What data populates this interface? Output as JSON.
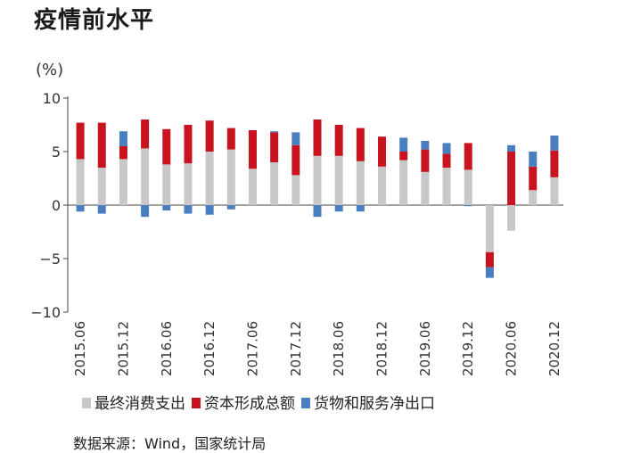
{
  "heading": "疫情前水平",
  "source": "数据来源：Wind，国家统计局",
  "chart_data": {
    "type": "bar",
    "stacked": true,
    "ylabel": "(%)",
    "ylim": [
      -10,
      10
    ],
    "yticks": [
      10,
      5,
      0,
      -5,
      -10
    ],
    "ytick_labels": [
      "10",
      "5",
      "0",
      "−5",
      "−10"
    ],
    "grid": false,
    "legend_position": "bottom",
    "categories": [
      "2015.06",
      "2015.09",
      "2015.12",
      "2016.03",
      "2016.06",
      "2016.09",
      "2016.12",
      "2017.03",
      "2017.06",
      "2017.09",
      "2017.12",
      "2018.03",
      "2018.06",
      "2018.09",
      "2018.12",
      "2019.03",
      "2019.06",
      "2019.09",
      "2019.12",
      "2020.03",
      "2020.06",
      "2020.09",
      "2020.12"
    ],
    "xtick_labels": [
      "2015.06",
      "",
      "2015.12",
      "",
      "2016.06",
      "",
      "2016.12",
      "",
      "2017.06",
      "",
      "2017.12",
      "",
      "2018.06",
      "",
      "2018.12",
      "",
      "2019.06",
      "",
      "2019.12",
      "",
      "2020.06",
      "",
      "2020.12"
    ],
    "series": [
      {
        "name": "最终消费支出",
        "color": "#c8c8c8",
        "values": [
          4.3,
          3.5,
          4.3,
          5.3,
          3.8,
          3.9,
          5.0,
          5.2,
          3.4,
          4.0,
          2.8,
          4.6,
          4.6,
          4.1,
          3.6,
          4.2,
          3.1,
          3.5,
          3.3,
          -4.4,
          -2.4,
          1.4,
          2.6
        ]
      },
      {
        "name": "资本形成总额",
        "color": "#c8141e",
        "values": [
          3.4,
          4.2,
          1.2,
          2.7,
          3.3,
          3.6,
          2.9,
          2.0,
          3.6,
          2.8,
          2.8,
          3.4,
          2.9,
          3.1,
          2.8,
          0.8,
          2.1,
          1.3,
          2.5,
          -1.4,
          5.0,
          2.2,
          2.5
        ]
      },
      {
        "name": "货物和服务净出口",
        "color": "#4a7fbf",
        "values": [
          -0.6,
          -0.8,
          1.4,
          -1.1,
          -0.5,
          -0.8,
          -0.9,
          -0.4,
          0.0,
          0.1,
          1.2,
          -1.1,
          -0.6,
          -0.6,
          0.0,
          1.3,
          0.8,
          1.0,
          -0.1,
          -1.0,
          0.6,
          1.4,
          1.4
        ]
      }
    ]
  }
}
